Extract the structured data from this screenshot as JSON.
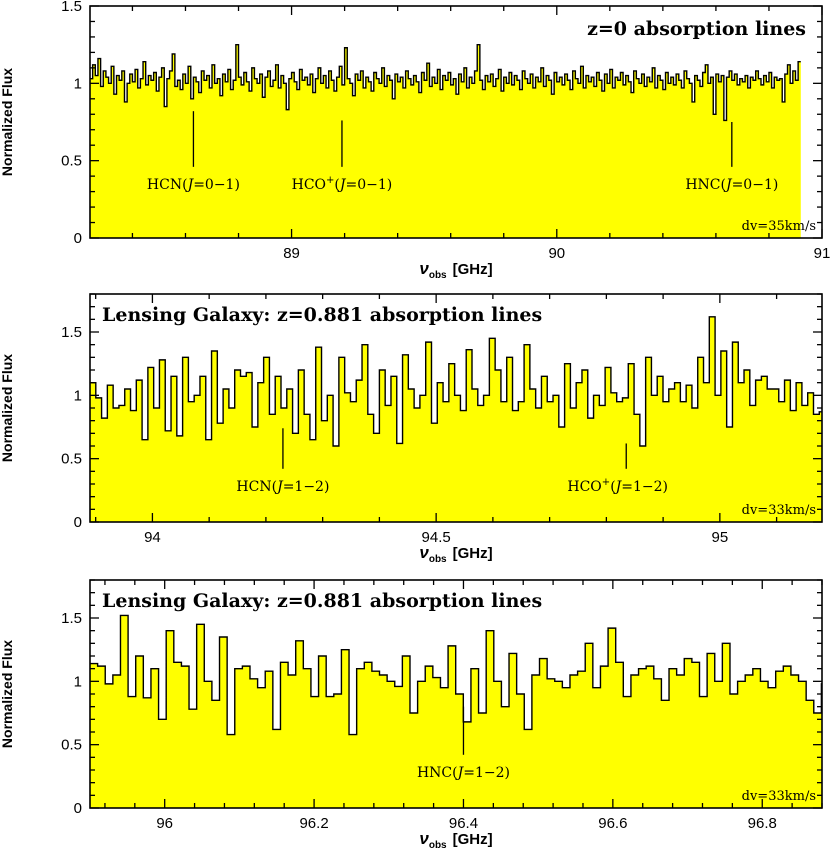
{
  "chart_data": [
    {
      "type": "area",
      "title": "z=0 absorption lines",
      "xlabel_symbol": "ν",
      "xlabel_sub": "obs",
      "xlabel_unit": "[GHz]",
      "ylabel": "Normalized Flux",
      "xlim": [
        88.24,
        91.0
      ],
      "ylim": [
        0,
        1.5
      ],
      "xticks": [
        89,
        90,
        91
      ],
      "xtick_labels": [
        "89",
        "90",
        "91"
      ],
      "yticks": [
        0,
        0.5,
        1,
        1.5
      ],
      "ytick_labels": [
        "0",
        "0.5",
        "1",
        "1.5"
      ],
      "note": "dv=35km/s",
      "fill_color": "#ffff00",
      "series": [
        {
          "x_start": 88.24,
          "step": 0.01,
          "values": [
            1.03,
            1.12,
            1.05,
            1.16,
            0.98,
            1.08,
            1.04,
            1.0,
            1.11,
            0.93,
            1.05,
            1.02,
            1.08,
            0.88,
            1.0,
            1.06,
            1.01,
            1.09,
            0.97,
            1.03,
            1.14,
            0.99,
            1.05,
            1.02,
            1.07,
            0.95,
            1.04,
            1.1,
            0.85,
            1.03,
            1.08,
            1.19,
            0.98,
            1.02,
            0.96,
            1.06,
            1.0,
            1.11,
            0.9,
            1.04,
            1.01,
            0.94,
            1.08,
            1.02,
            1.05,
            0.97,
            1.12,
            1.0,
            1.03,
            0.92,
            1.06,
            1.01,
            1.09,
            0.96,
            1.02,
            1.25,
            1.04,
            0.99,
            1.07,
            1.01,
            0.95,
            1.1,
            1.03,
            1.0,
            1.06,
            0.91,
            1.04,
            1.08,
            0.98,
            1.02,
            1.12,
            0.97,
            1.05,
            1.0,
            0.83,
            1.03,
            1.07,
            1.01,
            0.96,
            1.09,
            1.02,
            1.04,
            0.99,
            1.06,
            0.94,
            1.03,
            1.1,
            1.0,
            1.05,
            0.97,
            1.08,
            1.02,
            0.95,
            1.04,
            1.11,
            0.99,
            1.23,
            1.03,
            1.0,
            0.92,
            1.06,
            1.02,
            1.08,
            0.97,
            1.04,
            1.01,
            0.95,
            1.07,
            1.03,
            1.0,
            1.1,
            0.98,
            1.05,
            1.02,
            0.9,
            1.06,
            1.01,
            1.04,
            0.97,
            1.08,
            1.03,
            0.99,
            1.05,
            1.01,
            0.94,
            1.07,
            1.02,
            1.13,
            0.98,
            1.04,
            1.0,
            1.09,
            0.96,
            1.05,
            1.02,
            1.07,
            0.99,
            1.03,
            0.93,
            1.06,
            1.01,
            1.1,
            0.97,
            1.04,
            1.0,
            1.08,
            1.25,
            1.02,
            0.96,
            1.05,
            1.01,
            1.06,
            0.98,
            1.03,
            1.09,
            0.95,
            1.04,
            1.0,
            1.07,
            0.99,
            1.05,
            1.02,
            0.96,
            1.08,
            1.03,
            1.0,
            1.06,
            0.97,
            1.04,
            1.01,
            1.1,
            0.98,
            1.05,
            1.02,
            0.93,
            1.07,
            1.01,
            1.04,
            0.99,
            1.06,
            1.02,
            0.96,
            1.08,
            1.03,
            1.0,
            1.11,
            0.97,
            1.05,
            1.01,
            1.04,
            0.98,
            1.07,
            1.02,
            0.95,
            1.06,
            1.0,
            1.09,
            0.97,
            1.04,
            1.02,
            1.07,
            0.99,
            1.05,
            1.01,
            0.94,
            1.08,
            1.03,
            1.0,
            1.06,
            0.98,
            1.04,
            1.01,
            1.1,
            0.97,
            1.05,
            1.02,
            0.96,
            1.07,
            1.0,
            1.04,
            0.99,
            1.06,
            1.02,
            0.97,
            1.08,
            1.03,
            1.0,
            0.88,
            1.05,
            1.02,
            0.98,
            1.07,
            1.12,
            1.0,
            1.04,
            0.8,
            1.06,
            1.01,
            1.05,
            0.76,
            1.04,
            1.08,
            1.02,
            1.06,
            0.99,
            1.03,
            1.01,
            1.05,
            0.97,
            1.04,
            1.02,
            1.08,
            1.03,
            0.99,
            1.05,
            1.01,
            1.07,
            0.97,
            1.04,
            1.02,
            1.03,
            0.88,
            1.06,
            1.12,
            1.0,
            1.08,
            1.02,
            1.14
          ]
        }
      ],
      "lines": [
        {
          "x": 88.63,
          "name": "HCN",
          "sup": "",
          "transition": "J=0−1",
          "top": 0.82,
          "bottom": 0.46,
          "label_x": 88.63
        },
        {
          "x": 89.19,
          "name": "HCO",
          "sup": "+",
          "transition": "J=0−1",
          "top": 0.76,
          "bottom": 0.46,
          "label_x": 89.19
        },
        {
          "x": 90.66,
          "name": "HNC",
          "sup": "",
          "transition": "J=0−1",
          "top": 0.75,
          "bottom": 0.46,
          "label_x": 90.66
        }
      ]
    },
    {
      "type": "area",
      "title": "Lensing Galaxy: z=0.881 absorption lines",
      "xlabel_symbol": "ν",
      "xlabel_sub": "obs",
      "xlabel_unit": "[GHz]",
      "ylabel": "Normalized Flux",
      "xlim": [
        93.89,
        95.18
      ],
      "ylim": [
        0,
        1.8
      ],
      "xticks": [
        94,
        94.5,
        95
      ],
      "xtick_labels": [
        "94",
        "94.5",
        "95"
      ],
      "yticks": [
        0,
        0.5,
        1,
        1.5
      ],
      "ytick_labels": [
        "0",
        "0.5",
        "1",
        "1.5"
      ],
      "note": "dv=33km/s",
      "fill_color": "#ffff00",
      "series": [
        {
          "x_start": 93.89,
          "step": 0.0102,
          "values": [
            1.1,
            0.98,
            0.82,
            1.08,
            0.9,
            0.92,
            1.05,
            0.88,
            1.12,
            0.65,
            1.22,
            0.9,
            1.28,
            0.72,
            1.15,
            0.68,
            1.3,
            0.95,
            1.0,
            1.15,
            0.65,
            1.35,
            0.78,
            1.05,
            0.9,
            1.2,
            1.15,
            1.18,
            0.75,
            1.1,
            1.3,
            0.85,
            1.15,
            0.9,
            1.05,
            0.7,
            1.2,
            0.85,
            0.65,
            1.38,
            0.8,
            1.0,
            0.6,
            1.3,
            1.02,
            0.95,
            1.12,
            1.4,
            0.85,
            0.7,
            1.2,
            0.92,
            1.15,
            0.62,
            1.32,
            1.05,
            0.9,
            1.0,
            1.42,
            0.78,
            1.1,
            0.95,
            1.25,
            1.0,
            0.88,
            1.36,
            1.05,
            0.92,
            1.0,
            1.45,
            1.2,
            0.95,
            1.3,
            0.88,
            0.95,
            1.4,
            1.05,
            0.9,
            1.15,
            0.95,
            1.0,
            0.75,
            1.25,
            0.9,
            1.1,
            1.2,
            0.82,
            1.0,
            0.92,
            1.22,
            1.02,
            0.95,
            0.98,
            1.25,
            0.85,
            0.6,
            1.3,
            1.0,
            1.15,
            0.95,
            1.05,
            1.1,
            0.95,
            1.08,
            0.9,
            1.3,
            1.1,
            1.62,
            1.0,
            1.35,
            0.75,
            1.42,
            1.1,
            1.2,
            0.92,
            1.12,
            1.15,
            1.05,
            1.05,
            0.95,
            1.12,
            0.88,
            1.1,
            0.92,
            1.02,
            0.85,
            0.87
          ]
        }
      ],
      "lines": [
        {
          "x": 94.23,
          "name": "HCN",
          "sup": "",
          "transition": "J=1−2",
          "top": 0.74,
          "bottom": 0.42,
          "label_x": 94.23
        },
        {
          "x": 94.835,
          "name": "HCO",
          "sup": "+",
          "transition": "J=1−2",
          "top": 0.62,
          "bottom": 0.42,
          "label_x": 94.82
        }
      ]
    },
    {
      "type": "area",
      "title": "Lensing Galaxy: z=0.881 absorption lines",
      "xlabel_symbol": "ν",
      "xlabel_sub": "obs",
      "xlabel_unit": "[GHz]",
      "ylabel": "Normalized Flux",
      "xlim": [
        95.9,
        96.88
      ],
      "ylim": [
        0,
        1.8
      ],
      "xticks": [
        96,
        96.2,
        96.4,
        96.6,
        96.8
      ],
      "xtick_labels": [
        "96",
        "96.2",
        "96.4",
        "96.6",
        "96.8"
      ],
      "yticks": [
        0,
        0.5,
        1,
        1.5
      ],
      "ytick_labels": [
        "0",
        "0.5",
        "1",
        "1.5"
      ],
      "note": "dv=33km/s",
      "fill_color": "#ffff00",
      "series": [
        {
          "x_start": 95.9,
          "step": 0.0102,
          "values": [
            1.14,
            1.12,
            0.98,
            1.05,
            1.52,
            0.88,
            1.2,
            0.87,
            1.1,
            0.7,
            1.4,
            1.15,
            1.12,
            0.78,
            1.45,
            1.0,
            0.85,
            1.35,
            0.58,
            1.1,
            1.12,
            1.02,
            0.95,
            1.08,
            0.62,
            1.15,
            1.05,
            1.32,
            1.1,
            0.88,
            1.2,
            0.88,
            0.9,
            1.25,
            0.58,
            1.1,
            1.15,
            1.08,
            1.05,
            1.0,
            0.96,
            1.2,
            0.75,
            1.0,
            1.12,
            1.03,
            0.95,
            1.28,
            0.9,
            0.68,
            1.1,
            0.75,
            1.4,
            1.0,
            0.8,
            1.22,
            0.9,
            0.62,
            1.05,
            1.18,
            1.02,
            1.0,
            0.95,
            1.05,
            1.08,
            1.3,
            0.95,
            1.12,
            1.42,
            1.15,
            0.88,
            1.05,
            1.1,
            1.12,
            1.02,
            0.85,
            1.1,
            1.05,
            1.18,
            1.15,
            0.88,
            1.22,
            1.0,
            1.3,
            0.9,
            1.0,
            1.05,
            1.1,
            1.0,
            0.95,
            1.08,
            1.12,
            1.05,
            1.0,
            0.85,
            0.75,
            0.98,
            1.0,
            0.95,
            1.02,
            0.98,
            1.05,
            0.92,
            1.18,
            1.1,
            1.12
          ]
        }
      ],
      "lines": [
        {
          "x": 96.4,
          "name": "HNC",
          "sup": "",
          "transition": "J=1−2",
          "top": 0.8,
          "bottom": 0.42,
          "label_x": 96.4
        }
      ]
    }
  ]
}
